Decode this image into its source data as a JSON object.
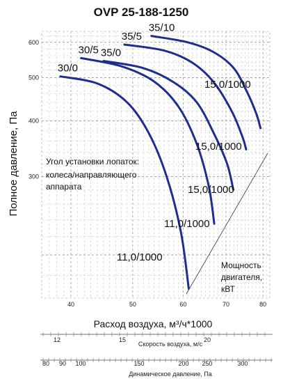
{
  "chart_data": {
    "type": "line",
    "title": "OVP 25-188-1250",
    "xlabel": "Расход воздуха, м³/ч*1000",
    "ylabel": "Полное давление, Па",
    "xlim": [
      36,
      82
    ],
    "ylim": [
      160,
      635
    ],
    "x_scale": "log",
    "y_scale": "log",
    "x_ticks": [
      40,
      50,
      60,
      70,
      80
    ],
    "y_ticks": [
      300,
      400,
      500,
      600
    ],
    "grid": true,
    "series": [
      {
        "name": "30/0",
        "x": [
          38.5,
          44,
          49,
          53,
          56.5,
          59.5,
          61.2
        ],
        "y": [
          503,
          485,
          440,
          375,
          300,
          225,
          168
        ]
      },
      {
        "name": "30/5",
        "x": [
          41.5,
          48,
          54,
          59,
          63,
          65.8,
          67.1
        ],
        "y": [
          553,
          530,
          490,
          430,
          355,
          285,
          235
        ]
      },
      {
        "name": "35/0",
        "x": [
          45,
          52,
          58,
          63,
          67,
          70.3,
          71.9
        ],
        "y": [
          545,
          525,
          488,
          440,
          375,
          320,
          280
        ]
      },
      {
        "name": "35/5",
        "x": [
          48.5,
          56,
          62,
          67,
          71.5,
          74.2,
          75.3
        ],
        "y": [
          593,
          575,
          540,
          488,
          420,
          370,
          345
        ]
      },
      {
        "name": "35/10",
        "x": [
          53.5,
          61,
          67,
          72,
          75.5,
          78.1,
          79.3
        ],
        "y": [
          620,
          600,
          570,
          525,
          465,
          415,
          385
        ]
      }
    ],
    "annotations": {
      "power": [
        "15,0/1000",
        "15,0/1000",
        "15,0/1000",
        "11,0/1000",
        "11,0/1000"
      ],
      "blade_angle_note": [
        "Угол установки лопаток:",
        "колеса/направляющего",
        "аппарата"
      ],
      "power_note": [
        "Мощность",
        "двигателя,",
        "кВТ"
      ]
    },
    "secondary_axes": [
      {
        "label": "Скорость воздуха, м/с",
        "ticks": [
          "12",
          "15",
          "20"
        ]
      },
      {
        "label": "Динамическое давление, Па",
        "ticks": [
          "80",
          "90",
          "100",
          "150",
          "200",
          "250",
          "300"
        ]
      }
    ]
  }
}
